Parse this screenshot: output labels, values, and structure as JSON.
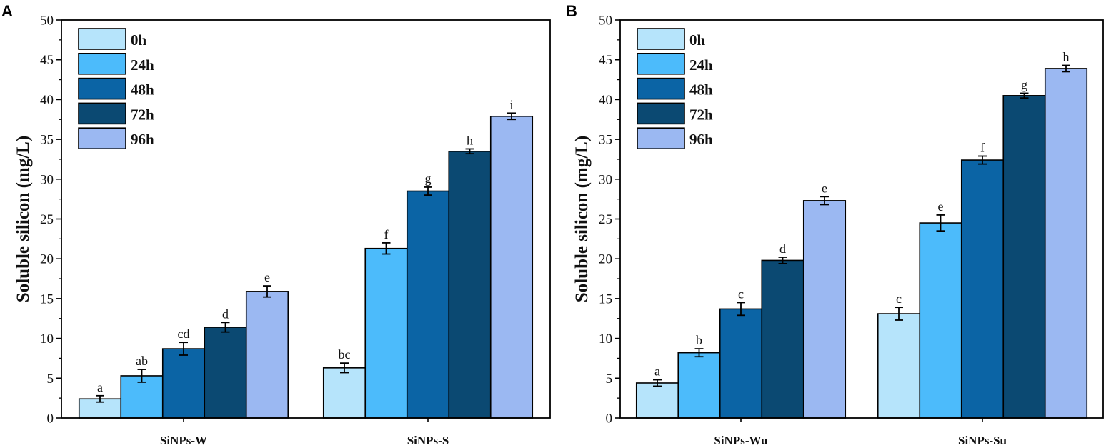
{
  "colors": {
    "0h": "#b6e4fb",
    "24h": "#4cbbfb",
    "48h": "#0b64a5",
    "72h": "#0b4972",
    "96h": "#9bb8f2",
    "outline": "#000000"
  },
  "chart_data": [
    {
      "type": "bar",
      "panel": "A",
      "ylabel": "Soluble silicon (mg/L)",
      "xlabel": "",
      "ylim": [
        0,
        50
      ],
      "yticks": [
        0,
        5,
        10,
        15,
        20,
        25,
        30,
        35,
        40,
        45,
        50
      ],
      "categories": [
        "SiNPs-W",
        "SiNPs-S"
      ],
      "legend": [
        "0h",
        "24h",
        "48h",
        "72h",
        "96h"
      ],
      "legend_position": "top-left",
      "series": [
        {
          "name": "0h",
          "values": [
            2.4,
            6.3
          ],
          "errors": [
            0.4,
            0.6
          ],
          "letters": [
            "a",
            "bc"
          ]
        },
        {
          "name": "24h",
          "values": [
            5.3,
            21.3
          ],
          "errors": [
            0.8,
            0.7
          ],
          "letters": [
            "ab",
            "f"
          ]
        },
        {
          "name": "48h",
          "values": [
            8.7,
            28.5
          ],
          "errors": [
            0.8,
            0.5
          ],
          "letters": [
            "cd",
            "g"
          ]
        },
        {
          "name": "72h",
          "values": [
            11.4,
            33.5
          ],
          "errors": [
            0.6,
            0.3
          ],
          "letters": [
            "d",
            "h"
          ]
        },
        {
          "name": "96h",
          "values": [
            15.9,
            37.9
          ],
          "errors": [
            0.7,
            0.4
          ],
          "letters": [
            "e",
            "i"
          ]
        }
      ]
    },
    {
      "type": "bar",
      "panel": "B",
      "ylabel": "Soluble silicon (mg/L)",
      "xlabel": "",
      "ylim": [
        0,
        50
      ],
      "yticks": [
        0,
        5,
        10,
        15,
        20,
        25,
        30,
        35,
        40,
        45,
        50
      ],
      "categories": [
        "SiNPs-Wu",
        "SiNPs-Su"
      ],
      "legend": [
        "0h",
        "24h",
        "48h",
        "72h",
        "96h"
      ],
      "legend_position": "top-left",
      "series": [
        {
          "name": "0h",
          "values": [
            4.4,
            13.1
          ],
          "errors": [
            0.4,
            0.8
          ],
          "letters": [
            "a",
            "c"
          ]
        },
        {
          "name": "24h",
          "values": [
            8.2,
            24.5
          ],
          "errors": [
            0.5,
            1.0
          ],
          "letters": [
            "b",
            "e"
          ]
        },
        {
          "name": "48h",
          "values": [
            13.7,
            32.4
          ],
          "errors": [
            0.8,
            0.5
          ],
          "letters": [
            "c",
            "f"
          ]
        },
        {
          "name": "72h",
          "values": [
            19.8,
            40.5
          ],
          "errors": [
            0.4,
            0.3
          ],
          "letters": [
            "d",
            "g"
          ]
        },
        {
          "name": "96h",
          "values": [
            27.3,
            43.9
          ],
          "errors": [
            0.5,
            0.4
          ],
          "letters": [
            "e",
            "h"
          ]
        }
      ]
    }
  ]
}
